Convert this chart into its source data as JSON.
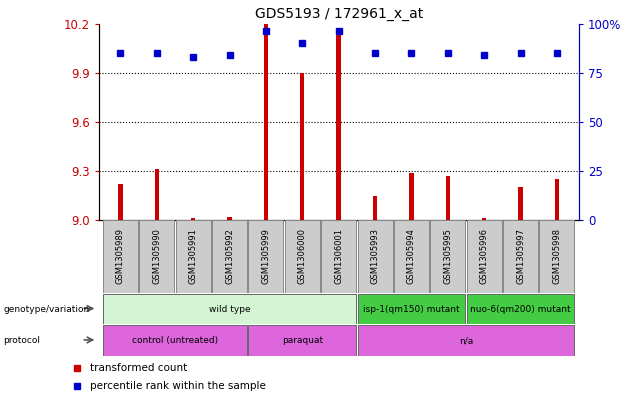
{
  "title": "GDS5193 / 172961_x_at",
  "samples": [
    "GSM1305989",
    "GSM1305990",
    "GSM1305991",
    "GSM1305992",
    "GSM1305999",
    "GSM1306000",
    "GSM1306001",
    "GSM1305993",
    "GSM1305994",
    "GSM1305995",
    "GSM1305996",
    "GSM1305997",
    "GSM1305998"
  ],
  "transformed_counts": [
    9.22,
    9.31,
    9.01,
    9.02,
    10.2,
    9.9,
    10.17,
    9.15,
    9.29,
    9.27,
    9.01,
    9.2,
    9.25
  ],
  "percentile_ranks": [
    85,
    85,
    83,
    84,
    96,
    90,
    96,
    85,
    85,
    85,
    84,
    85,
    85
  ],
  "y_min": 9.0,
  "y_max": 10.2,
  "y_ticks": [
    9.0,
    9.3,
    9.6,
    9.9,
    10.2
  ],
  "right_y_ticks": [
    0,
    25,
    50,
    75,
    100
  ],
  "genotype_groups": [
    {
      "label": "wild type",
      "start": 0,
      "end": 6,
      "color": "#d4f5d4"
    },
    {
      "label": "isp-1(qm150) mutant",
      "start": 7,
      "end": 9,
      "color": "#44cc44"
    },
    {
      "label": "nuo-6(qm200) mutant",
      "start": 10,
      "end": 12,
      "color": "#44cc44"
    }
  ],
  "protocol_groups": [
    {
      "label": "control (untreated)",
      "start": 0,
      "end": 3,
      "color": "#dd66dd"
    },
    {
      "label": "paraquat",
      "start": 4,
      "end": 6,
      "color": "#dd66dd"
    },
    {
      "label": "n/a",
      "start": 7,
      "end": 12,
      "color": "#dd66dd"
    }
  ],
  "bar_color": "#cc0000",
  "dot_color": "#0000cc",
  "axis_color_left": "#cc0000",
  "axis_color_right": "#0000cc",
  "sample_box_color": "#cccccc",
  "legend_items": [
    {
      "color": "#cc0000",
      "label": "transformed count"
    },
    {
      "color": "#0000cc",
      "label": "percentile rank within the sample"
    }
  ]
}
